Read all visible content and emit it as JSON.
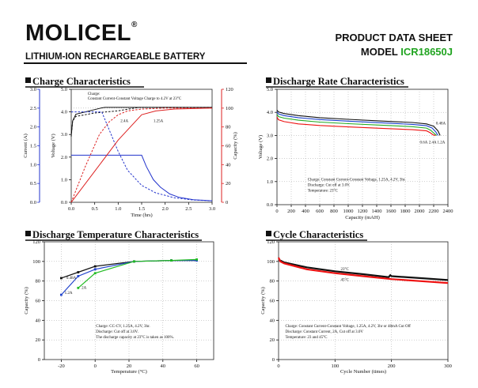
{
  "header": {
    "brand": "MOLICEL",
    "registered_mark": "®",
    "subtitle": "LITHIUM-ION RECHARGEABLE BATTERY",
    "doc_title": "PRODUCT DATA SHEET",
    "model_prefix": "MODEL",
    "model_code": "ICR18650J",
    "colors": {
      "accent": "#21a421",
      "text": "#111111"
    }
  },
  "chart_data": [
    {
      "id": "charge",
      "type": "line",
      "title": "Charge Characteristics",
      "xlabel": "Time (hrs)",
      "ylabel_left": "Current (A)",
      "ylabel_mid": "Voltage (V)",
      "ylabel_right": "Capacity (%)",
      "xlim": [
        0,
        3.0
      ],
      "xticks": [
        0,
        0.5,
        1.0,
        1.5,
        2.0,
        2.5,
        3.0
      ],
      "xtick_labels": [
        "0.0",
        "0.5",
        "1.0",
        "1.5",
        "2.0",
        "2.5",
        "3.0"
      ],
      "current_axis": {
        "ylim": [
          0,
          3.0
        ],
        "ticks": [
          "0.0",
          "0.5",
          "1.0",
          "1.5",
          "2.0",
          "2.5",
          "3.0"
        ],
        "color": "#2233cc"
      },
      "voltage_axis": {
        "ylim": [
          0,
          5.0
        ],
        "ticks": [
          "0.0",
          "1.0",
          "2.0",
          "3.0",
          "4.0",
          "5.0"
        ]
      },
      "capacity_axis": {
        "ylim": [
          0,
          120
        ],
        "ticks": [
          "0",
          "20",
          "40",
          "60",
          "80",
          "100",
          "120"
        ],
        "color": "#dd2222"
      },
      "annotation": [
        "Charge:",
        "Constant Current-Constant Voltage Charge to 4.2V at 23°C"
      ],
      "series": [
        {
          "name": "Voltage 2.4A",
          "axis": "voltage",
          "color": "#111111",
          "dash": false,
          "x": [
            0,
            0.03,
            0.1,
            0.3,
            0.5,
            0.65,
            0.72,
            3.0
          ],
          "y": [
            2.95,
            3.6,
            3.9,
            4.0,
            4.1,
            4.18,
            4.2,
            4.2
          ]
        },
        {
          "name": "Voltage 1.25A",
          "axis": "voltage",
          "color": "#111111",
          "dash": true,
          "x": [
            0,
            0.03,
            0.1,
            0.5,
            1.0,
            1.3,
            1.45,
            3.0
          ],
          "y": [
            2.9,
            3.6,
            3.8,
            3.95,
            4.05,
            4.15,
            4.2,
            4.2
          ]
        },
        {
          "name": "Current 2.4A",
          "axis": "current",
          "color": "#2233cc",
          "dash": true,
          "x": [
            0,
            0.65,
            0.8,
            1.0,
            1.2,
            1.5,
            1.8,
            2.2,
            2.6,
            3.0
          ],
          "y": [
            2.4,
            2.4,
            1.95,
            1.35,
            0.85,
            0.45,
            0.25,
            0.12,
            0.06,
            0.04
          ]
        },
        {
          "name": "Current 1.25A",
          "axis": "current",
          "color": "#2233cc",
          "dash": false,
          "x": [
            0,
            1.5,
            1.6,
            1.75,
            1.9,
            2.1,
            2.3,
            2.6,
            3.0
          ],
          "y": [
            1.25,
            1.25,
            0.95,
            0.6,
            0.4,
            0.22,
            0.13,
            0.07,
            0.04
          ]
        },
        {
          "name": "Capacity 2.4A",
          "axis": "capacity",
          "color": "#dd2222",
          "dash": true,
          "x": [
            0,
            0.3,
            0.6,
            0.8,
            1.0,
            1.2,
            1.5,
            2.0,
            3.0
          ],
          "y": [
            0,
            38,
            72,
            85,
            93,
            97,
            99,
            100,
            100
          ]
        },
        {
          "name": "Capacity 1.25A",
          "axis": "capacity",
          "color": "#dd2222",
          "dash": false,
          "x": [
            0,
            0.5,
            1.0,
            1.5,
            1.8,
            2.2,
            3.0
          ],
          "y": [
            0,
            33,
            66,
            93,
            97,
            99,
            100
          ]
        }
      ],
      "labels": [
        {
          "text": "2.4A",
          "x": 1.05,
          "axis": "capacity",
          "y": 85
        },
        {
          "text": "1.25A",
          "x": 1.75,
          "axis": "capacity",
          "y": 85
        }
      ]
    },
    {
      "id": "rate",
      "type": "line",
      "title": "Discharge Rate Characteristics",
      "xlabel": "Capacity (mAH)",
      "ylabel": "Voltage (V)",
      "xlim": [
        0,
        2400
      ],
      "ylim": [
        0,
        5.0
      ],
      "xticks": [
        0,
        200,
        400,
        600,
        800,
        1000,
        1200,
        1400,
        1600,
        1800,
        2000,
        2200,
        2400
      ],
      "xtick_labels": [
        "0",
        "200",
        "400",
        "600",
        "800",
        "1000",
        "1200",
        "1400",
        "1600",
        "1800",
        "2000",
        "2200",
        "2400"
      ],
      "yticks": [
        0,
        1.0,
        2.0,
        3.0,
        4.0,
        5.0
      ],
      "ytick_labels": [
        "0.0",
        "1.0",
        "2.0",
        "3.0",
        "4.0",
        "5.0"
      ],
      "annotation": [
        "Charge: Constant Current-Constant Voltage, 1.25A, 4.2V, 3hr.",
        "Discharge: Cut off at 3.0V.",
        "Temperature: 23°C"
      ],
      "series": [
        {
          "name": "0.48A",
          "color": "#111111",
          "x": [
            0,
            20,
            100,
            300,
            600,
            1000,
            1500,
            1900,
            2100,
            2200,
            2260,
            2290
          ],
          "y": [
            4.1,
            4.02,
            3.95,
            3.86,
            3.77,
            3.7,
            3.62,
            3.56,
            3.5,
            3.4,
            3.2,
            3.0
          ]
        },
        {
          "name": "0.6A",
          "color": "#1a3fcc",
          "x": [
            0,
            20,
            100,
            300,
            600,
            1000,
            1500,
            1900,
            2100,
            2180,
            2230,
            2260
          ],
          "y": [
            4.02,
            3.93,
            3.86,
            3.77,
            3.69,
            3.62,
            3.54,
            3.48,
            3.42,
            3.32,
            3.15,
            3.0
          ]
        },
        {
          "name": "2.4A",
          "color": "#22aa22",
          "x": [
            0,
            20,
            100,
            300,
            600,
            1000,
            1500,
            1900,
            2100,
            2160,
            2210,
            2240
          ],
          "y": [
            3.92,
            3.82,
            3.75,
            3.66,
            3.58,
            3.51,
            3.44,
            3.38,
            3.32,
            3.22,
            3.08,
            3.0
          ]
        },
        {
          "name": "1.2A",
          "color": "#ee1111",
          "x": [
            0,
            20,
            100,
            300,
            600,
            1000,
            1500,
            1900,
            2100,
            2150,
            2195,
            2225
          ],
          "y": [
            3.8,
            3.68,
            3.6,
            3.5,
            3.43,
            3.37,
            3.3,
            3.25,
            3.2,
            3.12,
            3.02,
            3.0
          ]
        }
      ],
      "labels": [
        {
          "text": "0.48A",
          "x": 2230,
          "y": 3.48
        },
        {
          "text": "0.6A",
          "x": 2005,
          "y": 2.65
        },
        {
          "text": "2.4A",
          "x": 2130,
          "y": 2.65
        },
        {
          "text": "1.2A",
          "x": 2250,
          "y": 2.65
        }
      ]
    },
    {
      "id": "temp",
      "type": "line",
      "title": "Discharge Temperature Characteristics",
      "xlabel": "Temperature (°C)",
      "ylabel": "Capacity (%)",
      "xlim": [
        -30,
        70
      ],
      "ylim": [
        0,
        120
      ],
      "xticks": [
        -20,
        0,
        20,
        40,
        60
      ],
      "xtick_labels": [
        "-20",
        "0",
        "20",
        "40",
        "60"
      ],
      "yticks": [
        0,
        20,
        40,
        60,
        80,
        100,
        120
      ],
      "ytick_labels": [
        "0",
        "20",
        "40",
        "60",
        "80",
        "100",
        "120"
      ],
      "annotation": [
        "Charge: CC-CV, 1.25A, 4.2V, 3hr.",
        "Discharge: Cut off at 3.0V.",
        "The discharge capacity at 23°C is taken as 100%."
      ],
      "series": [
        {
          "name": "0.48A",
          "color": "#111111",
          "x": [
            -20,
            -10,
            0,
            23,
            45,
            60
          ],
          "y": [
            83,
            89,
            95,
            100,
            101,
            101
          ]
        },
        {
          "name": "1.2A",
          "color": "#2244cc",
          "x": [
            -20,
            -10,
            0,
            23,
            45,
            60
          ],
          "y": [
            66,
            85,
            92,
            100,
            101,
            101
          ]
        },
        {
          "name": "2A",
          "color": "#22bb22",
          "x": [
            -10,
            0,
            23,
            45,
            60
          ],
          "y": [
            73,
            88,
            100,
            101,
            102
          ]
        }
      ],
      "labels": [
        {
          "text": "0.48A",
          "x": -17,
          "y": 82
        },
        {
          "text": "2A",
          "x": -8,
          "y": 72
        },
        {
          "text": "1.2A",
          "x": -18,
          "y": 67
        }
      ]
    },
    {
      "id": "cycle",
      "type": "line",
      "title": "Cycle Characteristics",
      "xlabel": "Cycle Number (times)",
      "ylabel": "Capacity (%)",
      "xlim": [
        0,
        300
      ],
      "ylim": [
        0,
        120
      ],
      "xticks": [
        0,
        100,
        200,
        300
      ],
      "xtick_labels": [
        "0",
        "100",
        "200",
        "300"
      ],
      "yticks": [
        0,
        20,
        40,
        60,
        80,
        100,
        120
      ],
      "ytick_labels": [
        "0",
        "20",
        "40",
        "60",
        "80",
        "100",
        "120"
      ],
      "annotation": [
        "Charge: Constant Current-Constant Voltage, 1.25A, 4.2V, 3hr or 48mA Cut Off",
        "Discharge: Constant Current, 2A, Cut off at 3.0V",
        "Temperature: 23 and 45°C"
      ],
      "series": [
        {
          "name": "23°C",
          "color": "#111111",
          "x": [
            0,
            3,
            10,
            50,
            100,
            150,
            195,
            198,
            200,
            250,
            300
          ],
          "y": [
            102,
            101,
            99,
            94,
            90,
            87,
            84,
            86,
            85,
            83,
            81
          ]
        },
        {
          "name": "45°C",
          "color": "#ee1111",
          "x": [
            0,
            3,
            10,
            50,
            100,
            150,
            200,
            250,
            300
          ],
          "y": [
            104,
            100,
            98,
            92,
            88,
            85,
            82,
            80,
            78
          ]
        }
      ],
      "labels": [
        {
          "text": "23°C",
          "x": 110,
          "y": 91
        },
        {
          "text": "45°C",
          "x": 110,
          "y": 80
        }
      ]
    }
  ]
}
